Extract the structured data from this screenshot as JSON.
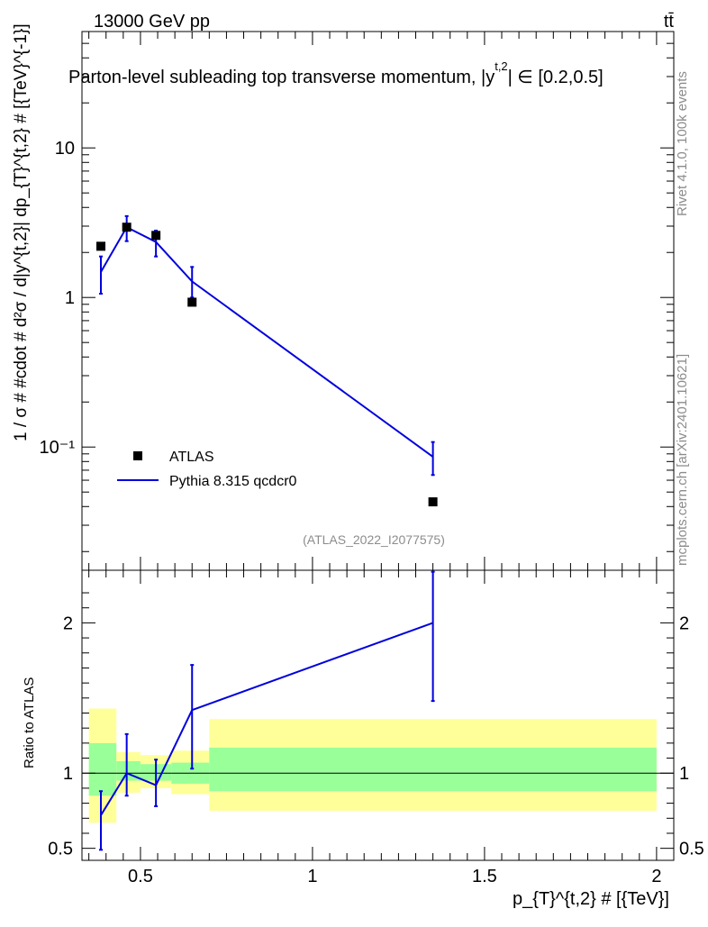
{
  "header": {
    "energy_label": "13000 GeV pp",
    "process_label": "tt̄",
    "plot_title": "Parton-level subleading top transverse momentum, |y",
    "title_superscript": "t,2",
    "title_suffix": "| ∈ [0.2,0.5]",
    "watermark": "(ATLAS_2022_I2077575)",
    "side_label_top": "Rivet 4.1.0,  100k events",
    "side_label_bottom": "mcplots.cern.ch [arXiv:2401.10621]"
  },
  "chart_data": [
    {
      "type": "scatter",
      "panel": "main",
      "yscale": "log",
      "ylim": [
        0.015,
        60
      ],
      "xlim": [
        0.33,
        2.05
      ],
      "ylabel": "1 / σ # #cdot # d²σ / d|y^{t,2}| dp_{T}^{t,2} # [{TeV}^{-1}]",
      "ytick_labels": [
        "10⁻¹",
        "1",
        "10"
      ],
      "ytick_values": [
        0.1,
        1,
        10
      ],
      "series": [
        {
          "name": "ATLAS",
          "color": "#000000",
          "marker": "square",
          "x": [
            0.385,
            0.46,
            0.545,
            0.65,
            1.35
          ],
          "y": [
            2.2,
            2.95,
            2.6,
            0.93,
            0.043
          ]
        },
        {
          "name": "Pythia 8.315 qcdcr0",
          "color": "#0000dd",
          "marker": "line",
          "x": [
            0.385,
            0.46,
            0.545,
            0.65,
            1.35
          ],
          "y": [
            1.48,
            2.95,
            2.35,
            1.28,
            0.086
          ],
          "yerr_low": [
            1.06,
            2.38,
            1.88,
            1.0,
            0.065
          ],
          "yerr_high": [
            1.88,
            3.5,
            2.8,
            1.6,
            0.108
          ]
        }
      ],
      "legend": {
        "position": "lower-left",
        "entries": [
          "ATLAS",
          "Pythia 8.315 qcdcr0"
        ]
      }
    },
    {
      "type": "line",
      "panel": "ratio",
      "ylim": [
        0.42,
        2.35
      ],
      "xlim": [
        0.33,
        2.05
      ],
      "ylabel": "Ratio to ATLAS",
      "xlabel": "p_{T}^{t,2} # [{TeV}]",
      "xtick_labels": [
        "0.5",
        "1",
        "1.5",
        "2"
      ],
      "xtick_values": [
        0.5,
        1,
        1.5,
        2
      ],
      "ytick_labels": [
        "0.5",
        "1",
        "2"
      ],
      "ytick_values": [
        0.5,
        1,
        2
      ],
      "bins": [
        0.35,
        0.43,
        0.5,
        0.59,
        0.7,
        2.0
      ],
      "band_inner": {
        "color": "#99ff99",
        "low": [
          0.85,
          0.95,
          0.95,
          0.93,
          0.88
        ],
        "high": [
          1.2,
          1.08,
          1.06,
          1.07,
          1.17
        ]
      },
      "band_outer": {
        "color": "#ffff99",
        "low": [
          0.67,
          0.87,
          0.9,
          0.86,
          0.75
        ],
        "high": [
          1.43,
          1.14,
          1.12,
          1.15,
          1.36
        ]
      },
      "series": [
        {
          "name": "Pythia 8.315 qcdcr0",
          "color": "#0000dd",
          "x": [
            0.385,
            0.46,
            0.545,
            0.65,
            1.35
          ],
          "y": [
            0.72,
            1.0,
            0.92,
            1.42,
            2.0
          ],
          "yerr_low": [
            0.49,
            0.85,
            0.78,
            1.03,
            1.48
          ],
          "yerr_high": [
            0.88,
            1.26,
            1.09,
            1.72,
            2.34
          ]
        }
      ]
    }
  ]
}
